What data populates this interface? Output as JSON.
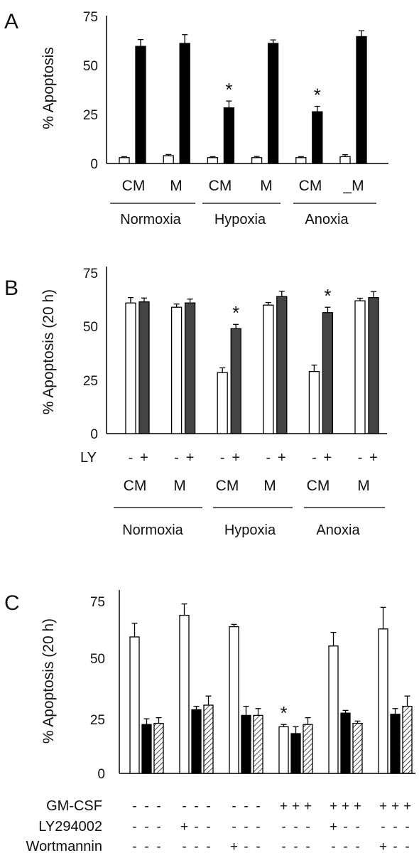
{
  "chart_data": [
    {
      "panel": "A",
      "type": "bar",
      "ylabel": "% Apoptosis",
      "ylim": [
        0,
        75
      ],
      "yticks": [
        0,
        25,
        50,
        75
      ],
      "categories": [
        "CM",
        "M",
        "CM",
        "M",
        "CM",
        "_M"
      ],
      "groups": [
        "Normoxia",
        "Hypoxia",
        "Anoxia"
      ],
      "series": [
        {
          "color": "#ffffff",
          "values": [
            3,
            4,
            3,
            3,
            3,
            3.5
          ],
          "errors": [
            0.5,
            0.6,
            0.5,
            0.6,
            0.5,
            1.0
          ]
        },
        {
          "color": "#000000",
          "values": [
            60,
            61.5,
            28.5,
            61.5,
            26.5,
            65
          ],
          "errors": [
            3.5,
            4.5,
            3.5,
            1.8,
            2.8,
            3.0
          ]
        }
      ],
      "significance": [
        "",
        "",
        "*",
        "",
        "*",
        ""
      ]
    },
    {
      "panel": "B",
      "type": "bar",
      "ylabel": "% Apoptosis (20 h)",
      "ylim": [
        0,
        75
      ],
      "yticks": [
        0,
        25,
        50,
        75
      ],
      "categories": [
        "CM",
        "M",
        "CM",
        "M",
        "CM",
        "M"
      ],
      "groups": [
        "Normoxia",
        "Hypoxia",
        "Anoxia"
      ],
      "treatment_label": "LY",
      "treatment_signs": [
        "-",
        "+"
      ],
      "series": [
        {
          "color": "#ffffff",
          "values": [
            61,
            59,
            28.5,
            60,
            29,
            62
          ],
          "errors": [
            2.5,
            1.5,
            2.2,
            1.2,
            3.0,
            1.2
          ]
        },
        {
          "color": "#444444",
          "values": [
            61.5,
            61,
            49,
            64,
            56.5,
            63.5
          ],
          "errors": [
            1.8,
            1.8,
            2.0,
            2.5,
            2.5,
            2.8
          ]
        }
      ],
      "significance": [
        "",
        "",
        "*",
        "",
        "*",
        ""
      ]
    },
    {
      "panel": "C",
      "type": "bar",
      "ylabel": "% Apoptosis (20 h)",
      "ylim": [
        0,
        75
      ],
      "yticks": [
        0,
        25,
        50,
        75
      ],
      "conditions": [
        {
          "label": "GM-CSF",
          "signs": [
            "-",
            "-",
            "-",
            "-",
            "-",
            "-",
            "-",
            "-",
            "-",
            "+",
            "+",
            "+",
            "+",
            "+",
            "+",
            "+",
            "+",
            "+"
          ]
        },
        {
          "label": "LY294002",
          "signs": [
            "-",
            "-",
            "-",
            "+",
            "-",
            "-",
            "-",
            "-",
            "-",
            "-",
            "-",
            "-",
            "+",
            "-",
            "-",
            "-",
            "-",
            "-"
          ]
        },
        {
          "label": "Wortmannin",
          "signs": [
            "-",
            "-",
            "-",
            "-",
            "-",
            "-",
            "+",
            "-",
            "-",
            "-",
            "-",
            "-",
            "-",
            "-",
            "-",
            "+",
            "-",
            "-"
          ]
        }
      ],
      "series": [
        {
          "color": "#ffffff",
          "values": [
            60,
            69.5,
            64.5,
            20.5,
            56,
            63.5
          ],
          "errors": [
            6,
            5,
            1,
            1,
            6,
            9.5
          ]
        },
        {
          "color": "#000000",
          "values": [
            21.5,
            28,
            25.5,
            17.5,
            26.5,
            26
          ],
          "errors": [
            2.5,
            1.5,
            4,
            3,
            1.2,
            2.5
          ]
        },
        {
          "color": "hatched",
          "values": [
            22,
            30,
            25.5,
            21.5,
            22,
            29.5
          ],
          "errors": [
            2.5,
            4,
            3,
            3,
            1,
            4.5
          ]
        }
      ],
      "significance": [
        "",
        "",
        "",
        "*",
        "",
        ""
      ]
    }
  ],
  "panels": {
    "a": {
      "letter": "A"
    },
    "b": {
      "letter": "B"
    },
    "c": {
      "letter": "C"
    }
  }
}
